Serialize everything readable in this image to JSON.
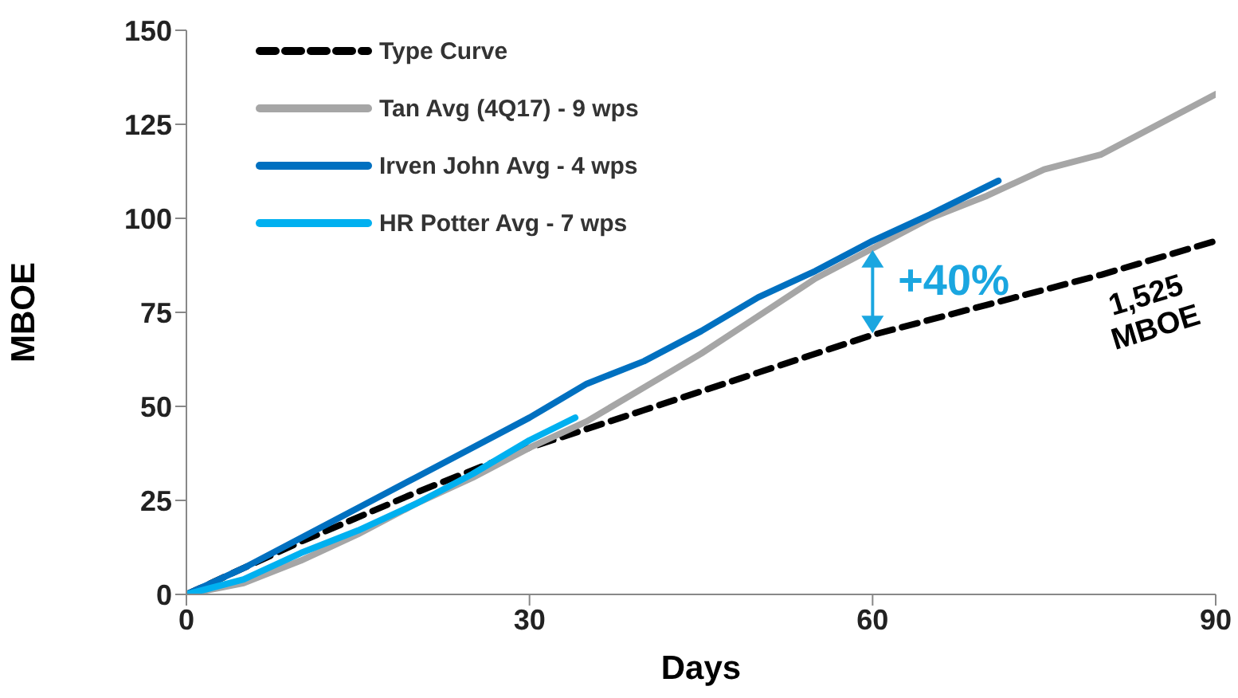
{
  "chart_data": {
    "type": "line",
    "xlabel": "Days",
    "ylabel": "MBOE",
    "xlim": [
      0,
      90
    ],
    "xticks": [
      0,
      30,
      60,
      90
    ],
    "ylim": [
      0,
      150
    ],
    "yticks": [
      0,
      25,
      50,
      75,
      100,
      125,
      150
    ],
    "grid": false,
    "legend": "top left",
    "marker": "none",
    "series": [
      {
        "name": "Type Curve",
        "color": "#000000",
        "line_style": "dashed",
        "x": [
          0,
          5,
          10,
          20,
          30,
          40,
          50,
          60,
          70,
          80,
          90
        ],
        "values": [
          0,
          7,
          14,
          27,
          39,
          49,
          59,
          69,
          77,
          85,
          94
        ]
      },
      {
        "name": "Tan Avg (4Q17) - 9 wps",
        "color": "#a6a6a6",
        "line_style": "solid",
        "x": [
          0,
          5,
          10,
          15,
          20,
          25,
          30,
          35,
          40,
          45,
          50,
          55,
          60,
          65,
          70,
          75,
          80,
          85,
          90
        ],
        "values": [
          0,
          3,
          9,
          16,
          24,
          31,
          39,
          46,
          55,
          64,
          74,
          84,
          92,
          100,
          106,
          113,
          117,
          125,
          133
        ]
      },
      {
        "name": "Irven John Avg - 4 wps",
        "color": "#0070c0",
        "line_style": "solid",
        "x": [
          0,
          5,
          10,
          15,
          20,
          25,
          30,
          35,
          40,
          45,
          50,
          55,
          60,
          65,
          71
        ],
        "values": [
          0,
          7,
          15,
          23,
          31,
          39,
          47,
          56,
          62,
          70,
          79,
          86,
          94,
          101,
          110
        ]
      },
      {
        "name": "HR Potter Avg - 7 wps",
        "color": "#00b0f0",
        "line_style": "solid",
        "x": [
          0,
          5,
          10,
          15,
          20,
          25,
          30,
          34
        ],
        "values": [
          0,
          4,
          11,
          17,
          24,
          32,
          41,
          47
        ]
      }
    ],
    "annotations": [
      {
        "text": "+40%",
        "x": 60,
        "y": 92
      },
      "1,525 MBOE"
    ]
  }
}
